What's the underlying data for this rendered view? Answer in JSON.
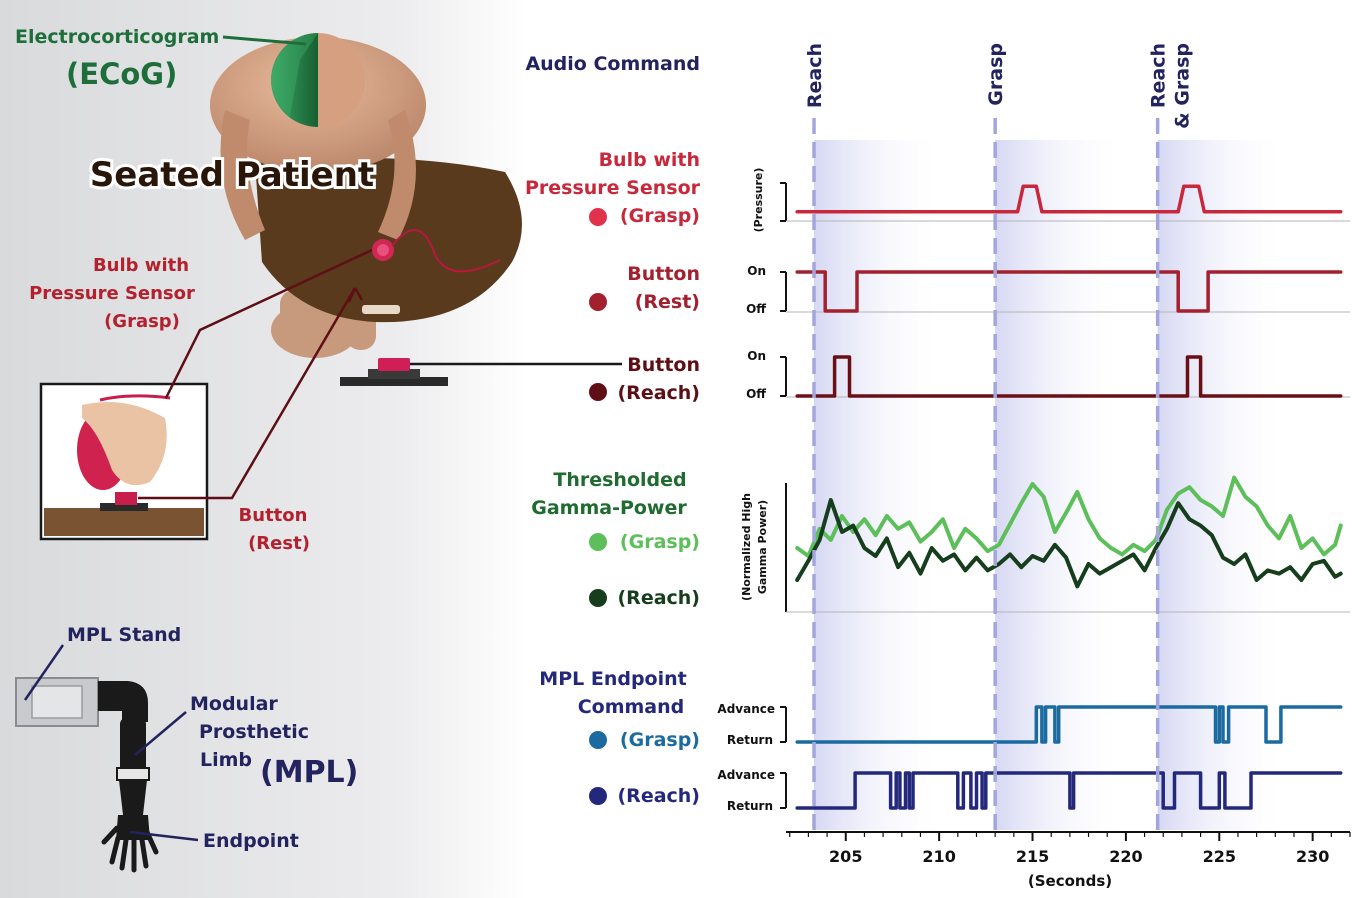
{
  "colors": {
    "pressure": "#c8283c",
    "rest": "#a3202e",
    "reach_button": "#6b0f16",
    "gamma_grasp": "#5cbf5a",
    "gamma_reach": "#163d1c",
    "mpl_grasp": "#1b6aa0",
    "mpl_reach": "#24287a",
    "navy": "#23235f",
    "red_label": "#b3202e",
    "dark_red": "#5e0f15",
    "green_label": "#1f6b30",
    "ecog_green": "#1e6e3c",
    "dashed": "#a3a6dc"
  },
  "illustration": {
    "ecog_label": "Electrocorticogram",
    "ecog_abbr": "(ECoG)",
    "seated_patient": "Seated Patient",
    "bulb_label": [
      "Bulb with",
      "Pressure Sensor",
      "(Grasp)"
    ],
    "button_rest_label": [
      "Button",
      "(Rest)"
    ],
    "mpl_stand": "MPL Stand",
    "mpl_label": [
      "Modular",
      "Prosthetic",
      "Limb"
    ],
    "mpl_abbr": "(MPL)",
    "endpoint": "Endpoint"
  },
  "row_labels": {
    "audio": "Audio Command",
    "bulb": [
      "Bulb with",
      "Pressure Sensor",
      "(Grasp)"
    ],
    "button_rest": [
      "Button",
      "(Rest)"
    ],
    "button_reach": [
      "Button",
      "(Reach)"
    ],
    "gamma": [
      "Thresholded",
      "Gamma-Power",
      "(Grasp)",
      "(Reach)"
    ],
    "mpl": [
      "MPL Endpoint",
      "Command",
      "(Grasp)",
      "(Reach)"
    ]
  },
  "axis_labels": {
    "pressure": "(Pressure)",
    "on": "On",
    "off": "Off",
    "gamma_line1": "(Normalized High",
    "gamma_line2": "Gamma Power)",
    "advance": "Advance",
    "return": "Return",
    "time": "(Seconds)"
  },
  "chart_data": {
    "type": "line",
    "xlabel": "(Seconds)",
    "xlim": [
      201.8,
      232
    ],
    "x_ticks": [
      205,
      210,
      215,
      220,
      225,
      230
    ],
    "commands": [
      {
        "time": 203.3,
        "label": [
          "Reach"
        ]
      },
      {
        "time": 213.0,
        "label": [
          "Grasp"
        ]
      },
      {
        "time": 221.7,
        "label": [
          "Reach",
          "& Grasp"
        ]
      }
    ],
    "series": [
      {
        "name": "(Grasp)",
        "signal": "pressure",
        "x": [
          202.4,
          213.0,
          214.2,
          214.5,
          215.2,
          215.5,
          221.7,
          222.8,
          223.1,
          223.9,
          224.2,
          231.5
        ],
        "y": [
          0.1,
          0.1,
          0.1,
          0.9,
          0.9,
          0.1,
          0.1,
          0.1,
          0.9,
          0.9,
          0.1,
          0.1
        ]
      },
      {
        "name": "(Rest)",
        "signal": "button",
        "x": [
          202.4,
          203.9,
          203.9,
          205.6,
          205.6,
          222.8,
          222.8,
          224.4,
          224.4,
          231.5
        ],
        "y": [
          1,
          1,
          0,
          0,
          1,
          1,
          0,
          0,
          1,
          1
        ]
      },
      {
        "name": "(Reach)",
        "signal": "button",
        "x": [
          202.4,
          204.4,
          204.4,
          205.2,
          205.2,
          223.3,
          223.3,
          224.0,
          224.0,
          231.5
        ],
        "y": [
          0,
          0,
          1,
          1,
          0,
          0,
          1,
          1,
          0,
          0
        ]
      },
      {
        "name": "(Grasp)",
        "signal": "gamma",
        "x": [
          202.4,
          203.0,
          203.6,
          204.2,
          204.8,
          205.4,
          206.0,
          206.6,
          207.2,
          207.8,
          208.4,
          209.0,
          209.6,
          210.2,
          210.8,
          211.4,
          212.0,
          212.6,
          213.2,
          213.8,
          214.4,
          215.0,
          215.6,
          216.2,
          216.8,
          217.4,
          218.0,
          218.6,
          219.2,
          219.8,
          220.4,
          221.0,
          221.6,
          222.2,
          222.8,
          223.4,
          224.0,
          224.6,
          225.2,
          225.8,
          226.4,
          227.0,
          227.6,
          228.2,
          228.8,
          229.4,
          230.0,
          230.6,
          231.2,
          231.5
        ],
        "y": [
          0.6,
          0.55,
          0.72,
          0.65,
          0.8,
          0.7,
          0.78,
          0.68,
          0.8,
          0.72,
          0.76,
          0.64,
          0.7,
          0.78,
          0.6,
          0.72,
          0.66,
          0.58,
          0.62,
          0.75,
          0.88,
          1.0,
          0.92,
          0.7,
          0.82,
          0.95,
          0.78,
          0.66,
          0.6,
          0.56,
          0.62,
          0.58,
          0.65,
          0.84,
          0.94,
          0.98,
          0.9,
          0.86,
          0.8,
          1.04,
          0.92,
          0.86,
          0.74,
          0.66,
          0.8,
          0.6,
          0.66,
          0.56,
          0.62,
          0.74
        ]
      },
      {
        "name": "(Reach)",
        "signal": "gamma",
        "x": [
          202.4,
          203.0,
          203.6,
          204.2,
          204.8,
          205.4,
          206.0,
          206.6,
          207.2,
          207.8,
          208.4,
          209.0,
          209.6,
          210.2,
          210.8,
          211.4,
          212.0,
          212.6,
          213.2,
          213.8,
          214.4,
          215.0,
          215.6,
          216.2,
          216.8,
          217.4,
          218.0,
          218.6,
          219.2,
          219.8,
          220.4,
          221.0,
          221.6,
          222.2,
          222.8,
          223.4,
          224.0,
          224.6,
          225.2,
          225.8,
          226.4,
          227.0,
          227.6,
          228.2,
          228.8,
          229.4,
          230.0,
          230.6,
          231.2,
          231.5
        ],
        "y": [
          0.4,
          0.52,
          0.65,
          0.9,
          0.7,
          0.74,
          0.6,
          0.55,
          0.66,
          0.48,
          0.57,
          0.44,
          0.6,
          0.52,
          0.56,
          0.46,
          0.54,
          0.46,
          0.5,
          0.56,
          0.48,
          0.55,
          0.52,
          0.62,
          0.54,
          0.36,
          0.5,
          0.44,
          0.48,
          0.52,
          0.56,
          0.46,
          0.6,
          0.72,
          0.88,
          0.78,
          0.74,
          0.68,
          0.54,
          0.5,
          0.56,
          0.4,
          0.46,
          0.44,
          0.48,
          0.4,
          0.5,
          0.52,
          0.42,
          0.44
        ]
      },
      {
        "name": "(Grasp)",
        "signal": "mpl",
        "x": [
          202.4,
          215.2,
          215.2,
          215.5,
          215.5,
          215.7,
          215.7,
          216.2,
          216.2,
          216.4,
          216.4,
          224.8,
          224.8,
          225.0,
          225.0,
          225.2,
          225.2,
          225.5,
          225.5,
          227.5,
          227.5,
          228.3,
          228.3,
          231.5
        ],
        "y": [
          0,
          0,
          1,
          1,
          0,
          0,
          1,
          1,
          0,
          0,
          1,
          1,
          0,
          0,
          1,
          1,
          0,
          0,
          1,
          1,
          0,
          0,
          1,
          1
        ]
      },
      {
        "name": "(Reach)",
        "signal": "mpl",
        "x": [
          202.4,
          205.5,
          205.5,
          207.4,
          207.4,
          207.7,
          207.7,
          207.9,
          207.9,
          208.2,
          208.2,
          208.4,
          208.4,
          208.6,
          208.6,
          211.0,
          211.0,
          211.3,
          211.3,
          211.7,
          211.7,
          212.0,
          212.0,
          212.3,
          212.3,
          212.5,
          212.5,
          217.0,
          217.0,
          217.2,
          217.2,
          222.0,
          222.0,
          222.6,
          222.6,
          224.0,
          224.0,
          225.0,
          225.0,
          225.3,
          225.3,
          226.7,
          226.7,
          231.5
        ],
        "y": [
          0,
          0,
          1,
          1,
          0,
          0,
          1,
          1,
          0,
          0,
          1,
          1,
          0,
          0,
          1,
          1,
          0,
          0,
          1,
          1,
          0,
          0,
          1,
          1,
          0,
          0,
          1,
          1,
          0,
          0,
          1,
          1,
          0,
          0,
          1,
          1,
          0,
          0,
          1,
          1,
          0,
          0,
          1,
          1
        ]
      }
    ]
  }
}
